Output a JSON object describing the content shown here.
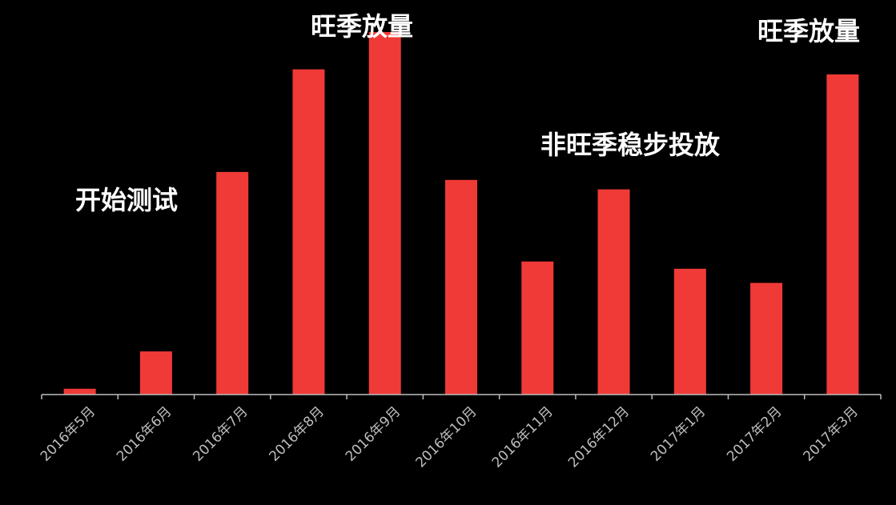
{
  "chart_data": {
    "type": "bar",
    "title": "",
    "xlabel": "",
    "ylabel": "",
    "categories": [
      "2016年5月",
      "2016年6月",
      "2016年7月",
      "2016年8月",
      "2016年9月",
      "2016年10月",
      "2016年11月",
      "2016年12月",
      "2017年1月",
      "2017年2月",
      "2017年3月"
    ],
    "values": [
      1.6,
      11.9,
      61.4,
      89.7,
      100,
      59.2,
      36.7,
      56.6,
      34.7,
      30.8,
      88.3
    ],
    "ylim": [
      0,
      100
    ],
    "grid": false,
    "bar_color": "#f03a37",
    "annotations": [
      {
        "text": "开始测试",
        "category_index": 0
      },
      {
        "text": "旺季放量",
        "category_index": 4
      },
      {
        "text": "非旺季稳步投放",
        "category_index": 7
      },
      {
        "text": "旺季放量",
        "category_index": 10
      }
    ]
  }
}
